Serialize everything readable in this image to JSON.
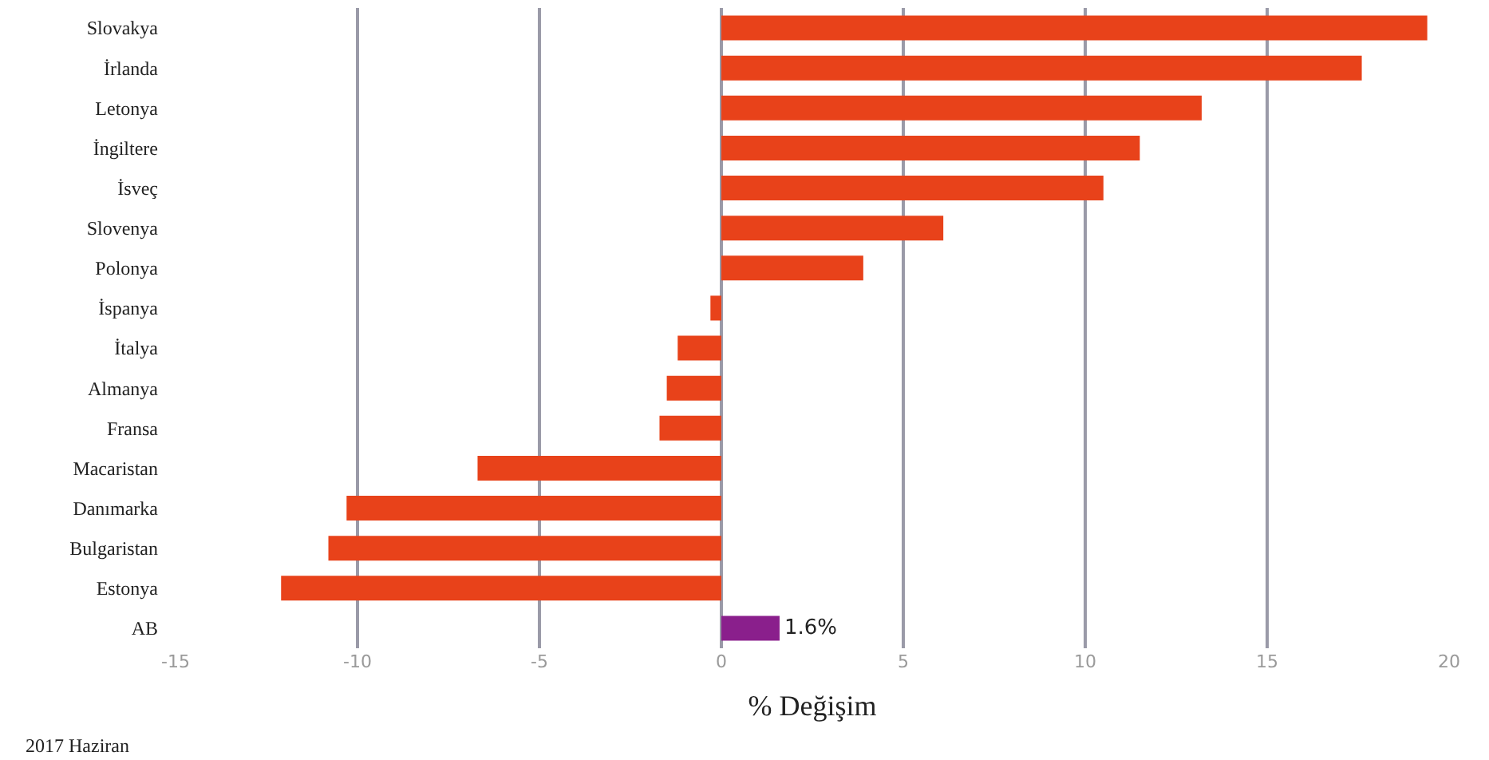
{
  "chart_data": {
    "type": "bar",
    "orientation": "horizontal",
    "xlabel": "% Değişim",
    "categories": [
      "Slovakya",
      "İrlanda",
      "Letonya",
      "İngiltere",
      "İsveç",
      "Slovenya",
      "Polonya",
      "İspanya",
      "İtalya",
      "Almanya",
      "Fransa",
      "Macaristan",
      "Danımarka",
      "Bulgaristan",
      "Estonya",
      "AB"
    ],
    "values": [
      19.4,
      17.6,
      13.2,
      11.5,
      10.5,
      6.1,
      3.9,
      -0.3,
      -1.2,
      -1.5,
      -1.7,
      -6.7,
      -10.3,
      -10.8,
      -12.1,
      1.6
    ],
    "colors": [
      "#e8421a",
      "#e8421a",
      "#e8421a",
      "#e8421a",
      "#e8421a",
      "#e8421a",
      "#e8421a",
      "#e8421a",
      "#e8421a",
      "#e8421a",
      "#e8421a",
      "#e8421a",
      "#e8421a",
      "#e8421a",
      "#e8421a",
      "#8a1f8c"
    ],
    "value_labels": [
      null,
      null,
      null,
      null,
      null,
      null,
      null,
      null,
      null,
      null,
      null,
      null,
      null,
      null,
      null,
      "1.6%"
    ],
    "xlim": [
      -15,
      20
    ],
    "xticks": [
      -15,
      -10,
      -5,
      0,
      5,
      10,
      15,
      20
    ],
    "grid": "x",
    "annotations": [
      "2017 Haziran"
    ]
  }
}
